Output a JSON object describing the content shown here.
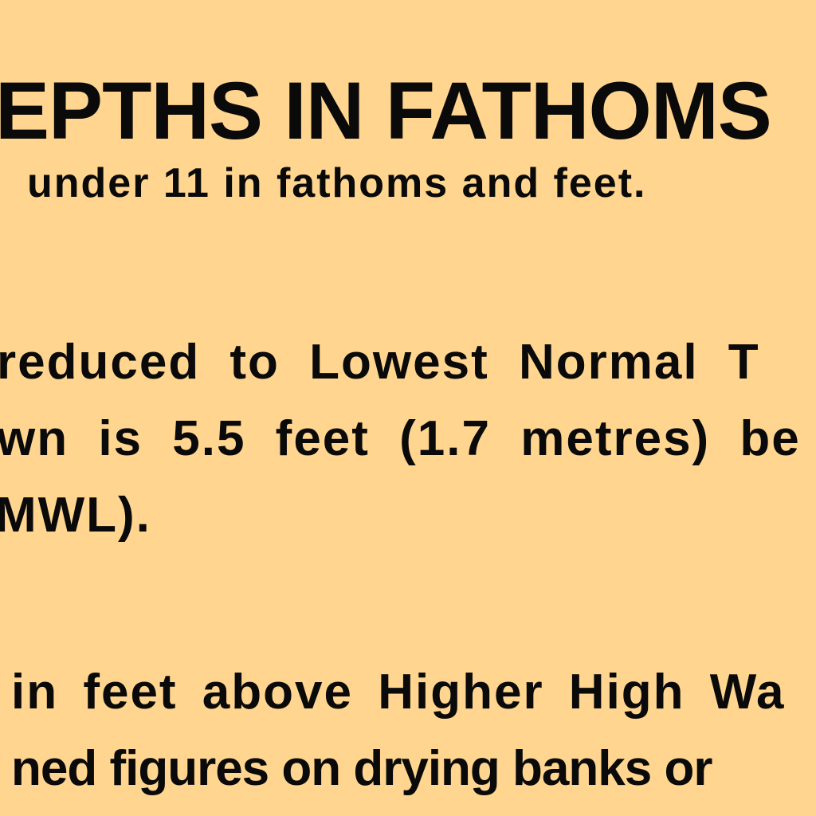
{
  "document": {
    "heading": "EPTHS IN FATHOMS",
    "subheading": "under 11 in fathoms and feet.",
    "lines": [
      "reduced to Lowest Normal T",
      "wn is 5.5 feet (1.7 metres) be",
      "MWL).",
      "in feet above Higher High Wa",
      "ned figures on drying banks or"
    ]
  }
}
